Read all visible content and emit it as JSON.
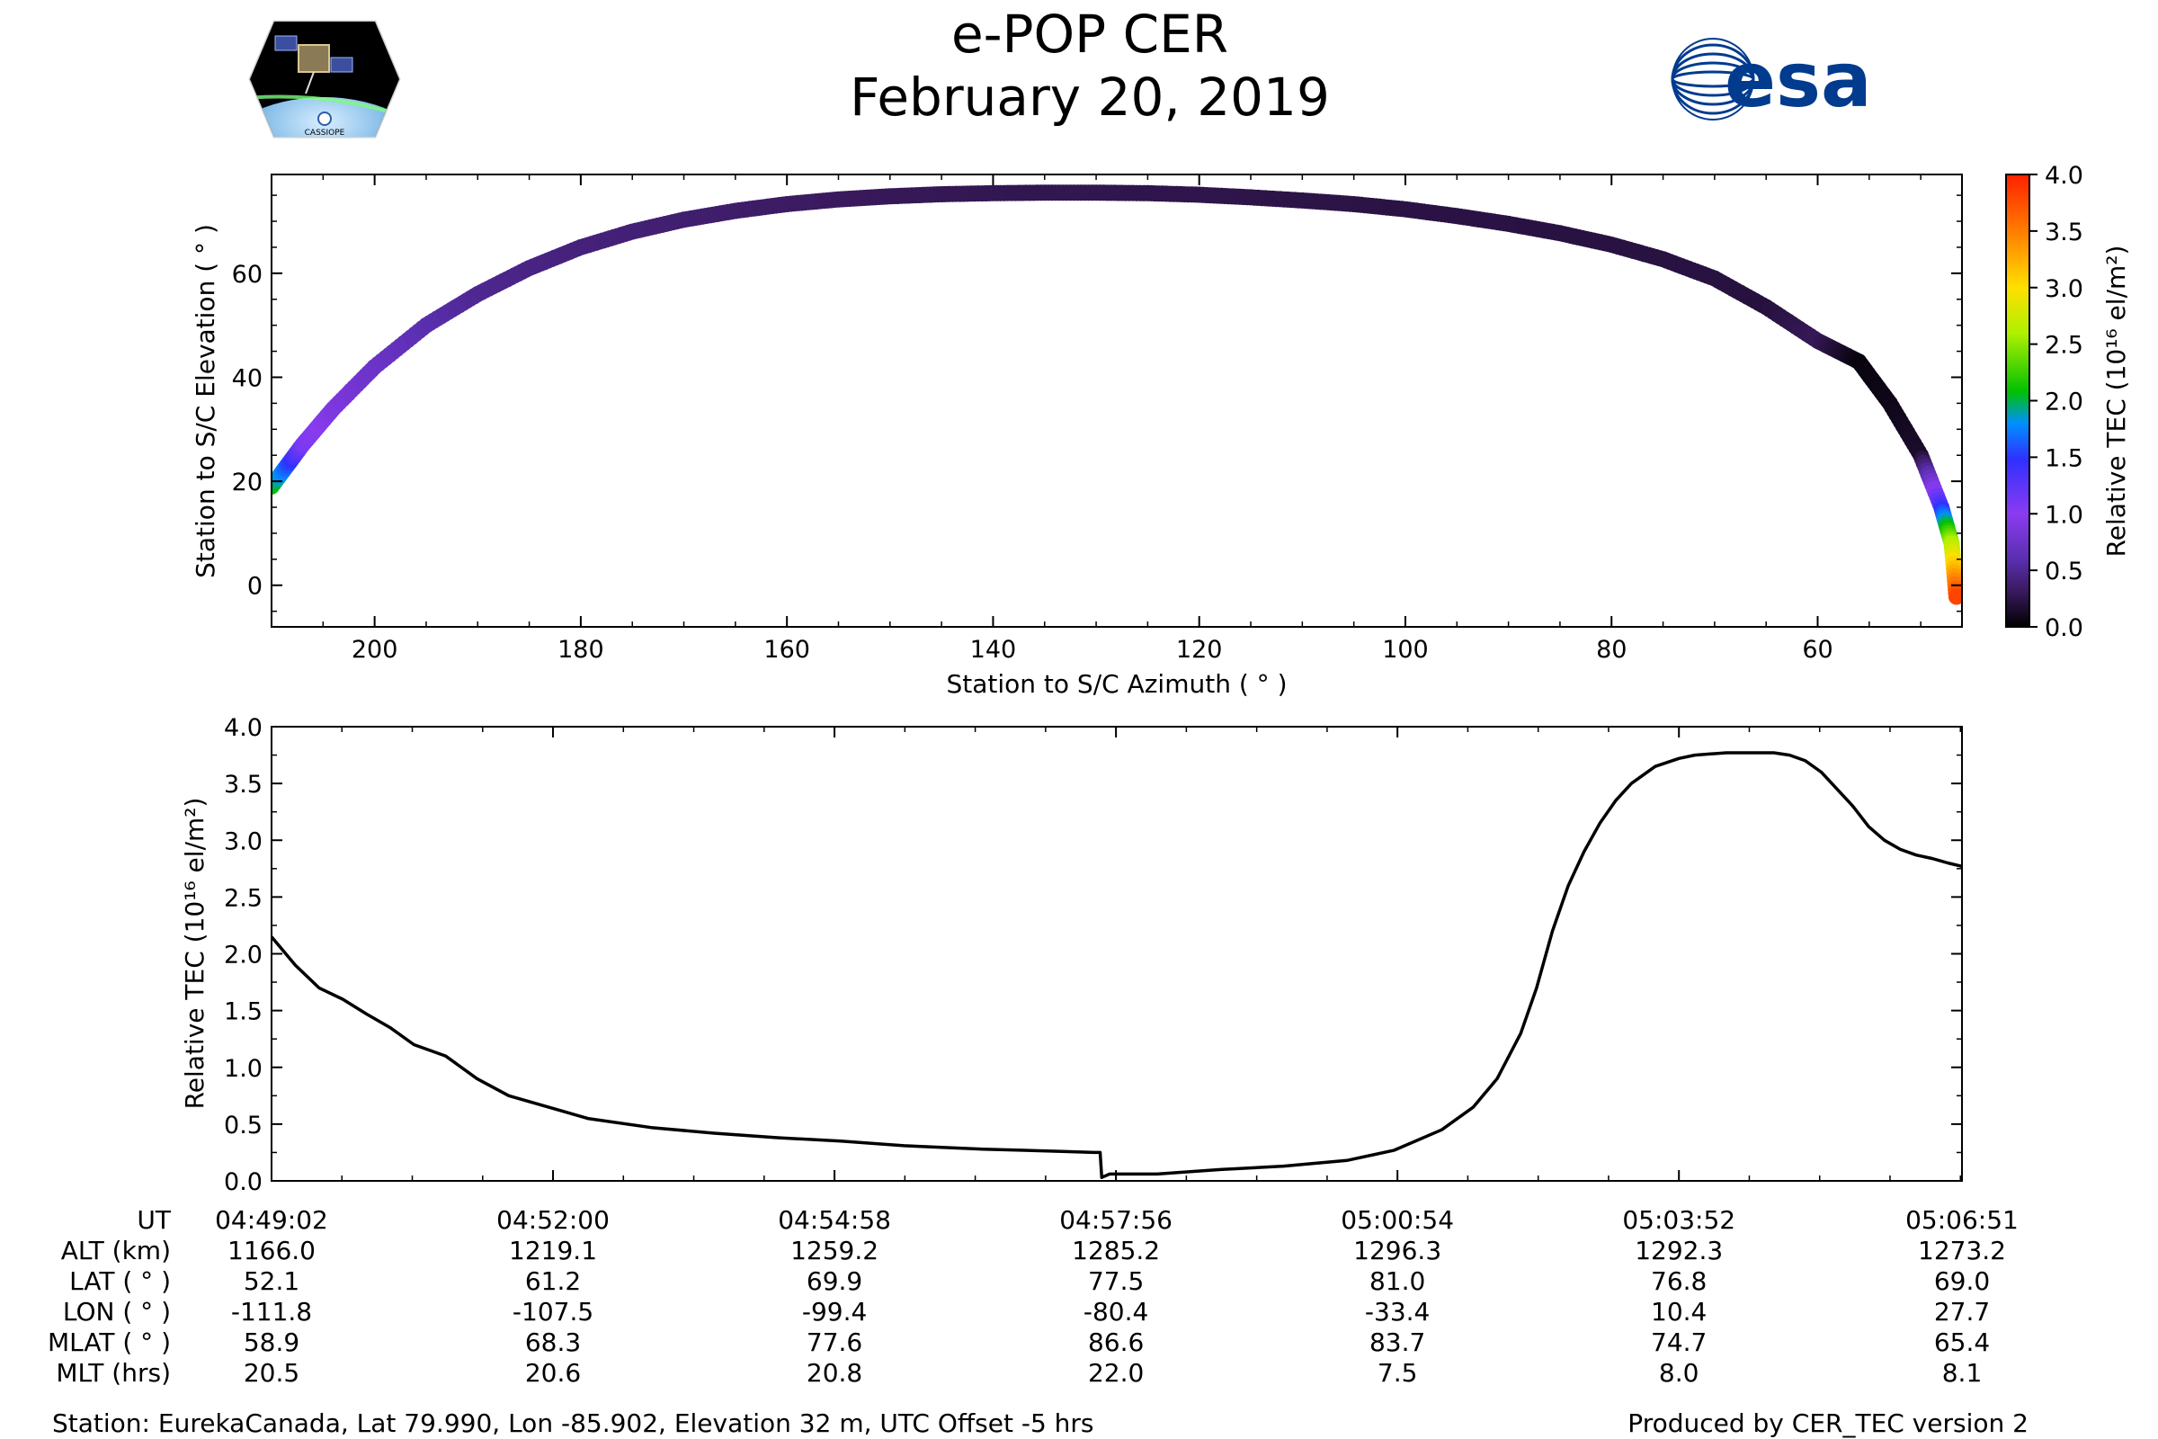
{
  "header": {
    "title": "e-POP CER",
    "date": "February 20, 2019",
    "left_logo": "cassiope-mission-logo",
    "left_logo_text": "CASSIOPE",
    "right_logo": "esa-logo",
    "right_logo_text": "esa"
  },
  "colors": {
    "esa_blue": "#003B8E",
    "line": "#000000",
    "colormap": [
      "#000000",
      "#3a1a5e",
      "#5a2fb0",
      "#8a3bf0",
      "#3030ff",
      "#0090ff",
      "#00c000",
      "#b0f000",
      "#ffe000",
      "#ff8000",
      "#ff2000"
    ]
  },
  "chart_data": [
    {
      "type": "scatter",
      "name": "elevation-vs-azimuth",
      "xlabel": "Station to S/C Azimuth ( ° )",
      "ylabel": "Station to S/C Elevation ( ° )",
      "xlim": [
        210,
        46
      ],
      "ylim": [
        -8,
        79
      ],
      "xticks": [
        200,
        180,
        160,
        140,
        120,
        100,
        80,
        60
      ],
      "yticks": [
        0,
        20,
        40,
        60
      ],
      "xtick_labels": [
        "200",
        "180",
        "160",
        "140",
        "120",
        "100",
        "80",
        "60"
      ],
      "ytick_labels": [
        "0",
        "20",
        "40",
        "60"
      ],
      "track": {
        "azimuth": [
          210,
          207,
          204,
          200,
          195,
          190,
          185,
          180,
          175,
          170,
          165,
          160,
          155,
          150,
          145,
          140,
          135,
          130,
          125,
          120,
          115,
          110,
          105,
          100,
          95,
          90,
          85,
          80,
          75,
          70,
          65,
          60,
          56,
          53,
          50,
          48,
          47,
          46.5
        ],
        "elevation": [
          19,
          27,
          34,
          42,
          50,
          56,
          61,
          65,
          68,
          70.3,
          72,
          73.3,
          74.2,
          74.8,
          75.2,
          75.4,
          75.5,
          75.5,
          75.4,
          75.1,
          74.6,
          74,
          73.3,
          72.3,
          71,
          69.5,
          67.7,
          65.5,
          62.7,
          59,
          53.5,
          47,
          43,
          35,
          25,
          15,
          8,
          -3
        ],
        "tec": [
          2.1,
          1.1,
          0.9,
          0.75,
          0.6,
          0.5,
          0.45,
          0.42,
          0.4,
          0.38,
          0.36,
          0.34,
          0.32,
          0.3,
          0.29,
          0.28,
          0.27,
          0.27,
          0.26,
          0.26,
          0.25,
          0.24,
          0.24,
          0.23,
          0.23,
          0.23,
          0.22,
          0.22,
          0.22,
          0.22,
          0.21,
          0.3,
          0.05,
          0.08,
          0.15,
          1.4,
          2.6,
          3.9
        ]
      }
    },
    {
      "type": "colorbar",
      "name": "tec-colorbar",
      "label": "Relative TEC (10¹⁶ el/m²)",
      "range": [
        0.0,
        4.0
      ],
      "ticks": [
        0.0,
        0.5,
        1.0,
        1.5,
        2.0,
        2.5,
        3.0,
        3.5,
        4.0
      ],
      "tick_labels": [
        "0.0",
        "0.5",
        "1.0",
        "1.5",
        "2.0",
        "2.5",
        "3.0",
        "3.5",
        "4.0"
      ]
    },
    {
      "type": "line",
      "name": "relative-tec-timeseries",
      "ylabel": "Relative TEC (10¹⁶ el/m²)",
      "xlim": [
        0,
        1069
      ],
      "ylim": [
        0.0,
        4.0
      ],
      "yticks": [
        0.0,
        0.5,
        1.0,
        1.5,
        2.0,
        2.5,
        3.0,
        3.5,
        4.0
      ],
      "ytick_labels": [
        "0.0",
        "0.5",
        "1.0",
        "1.5",
        "2.0",
        "2.5",
        "3.0",
        "3.5",
        "4.0"
      ],
      "xticks": [
        0,
        178,
        356,
        534,
        712,
        890,
        1069
      ],
      "x_seconds": [
        0,
        15,
        30,
        45,
        60,
        75,
        90,
        110,
        130,
        150,
        175,
        200,
        240,
        280,
        320,
        360,
        400,
        450,
        500,
        520,
        524,
        525,
        530,
        560,
        600,
        640,
        680,
        710,
        740,
        760,
        775,
        790,
        800,
        810,
        820,
        830,
        840,
        850,
        860,
        875,
        890,
        900,
        910,
        920,
        935,
        950,
        960,
        970,
        980,
        990,
        1000,
        1010,
        1020,
        1030,
        1040,
        1050,
        1060,
        1069
      ],
      "values": [
        2.15,
        1.9,
        1.7,
        1.6,
        1.47,
        1.35,
        1.2,
        1.1,
        0.9,
        0.75,
        0.65,
        0.55,
        0.47,
        0.42,
        0.38,
        0.35,
        0.31,
        0.28,
        0.26,
        0.25,
        0.25,
        0.03,
        0.06,
        0.06,
        0.1,
        0.13,
        0.18,
        0.27,
        0.45,
        0.65,
        0.9,
        1.3,
        1.7,
        2.2,
        2.6,
        2.9,
        3.15,
        3.35,
        3.5,
        3.65,
        3.72,
        3.75,
        3.76,
        3.77,
        3.77,
        3.77,
        3.75,
        3.7,
        3.6,
        3.45,
        3.3,
        3.12,
        3.0,
        2.92,
        2.87,
        2.84,
        2.8,
        2.77
      ]
    }
  ],
  "info_table": {
    "row_labels": [
      "UT",
      "ALT (km)",
      "LAT ( ° )",
      "LON ( ° )",
      "MLAT ( ° )",
      "MLT (hrs)"
    ],
    "columns": [
      {
        "ut": "04:49:02",
        "alt": "1166.0",
        "lat": "52.1",
        "lon": "-111.8",
        "mlat": "58.9",
        "mlt": "20.5"
      },
      {
        "ut": "04:52:00",
        "alt": "1219.1",
        "lat": "61.2",
        "lon": "-107.5",
        "mlat": "68.3",
        "mlt": "20.6"
      },
      {
        "ut": "04:54:58",
        "alt": "1259.2",
        "lat": "69.9",
        "lon": "-99.4",
        "mlat": "77.6",
        "mlt": "20.8"
      },
      {
        "ut": "04:57:56",
        "alt": "1285.2",
        "lat": "77.5",
        "lon": "-80.4",
        "mlat": "86.6",
        "mlt": "22.0"
      },
      {
        "ut": "05:00:54",
        "alt": "1296.3",
        "lat": "81.0",
        "lon": "-33.4",
        "mlat": "83.7",
        "mlt": "7.5"
      },
      {
        "ut": "05:03:52",
        "alt": "1292.3",
        "lat": "76.8",
        "lon": "10.4",
        "mlat": "74.7",
        "mlt": "8.0"
      },
      {
        "ut": "05:06:51",
        "alt": "1273.2",
        "lat": "69.0",
        "lon": "27.7",
        "mlat": "65.4",
        "mlt": "8.1"
      }
    ]
  },
  "footer": {
    "station": "Station: EurekaCanada, Lat 79.990, Lon -85.902, Elevation 32 m, UTC Offset -5 hrs",
    "produced_by": "Produced by CER_TEC version 2"
  }
}
